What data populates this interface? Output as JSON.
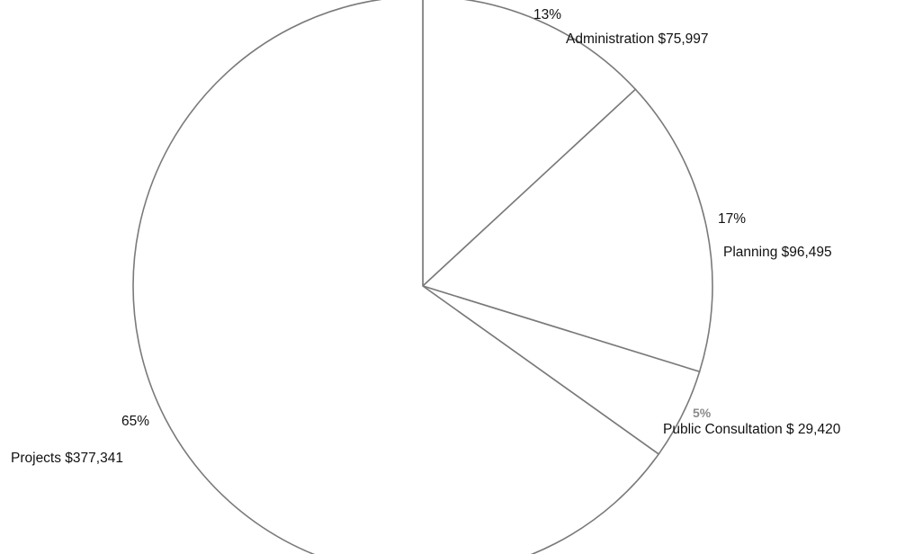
{
  "chart_data": {
    "type": "pie",
    "title": "",
    "slices": [
      {
        "label": "Administration $75,997",
        "percent_label": "13%",
        "value": 75997
      },
      {
        "label": "Planning $96,495",
        "percent_label": "17%",
        "value": 96495
      },
      {
        "label": "Public Consultation $ 29,420",
        "percent_label": "5%",
        "value": 29420
      },
      {
        "label": "Projects $377,341",
        "percent_label": "65%",
        "value": 377341
      }
    ],
    "start_angle": "12 o'clock",
    "direction": "clockwise",
    "legend": "none",
    "slice_fill": "#ffffff",
    "slice_stroke": "#7a7a7a"
  }
}
